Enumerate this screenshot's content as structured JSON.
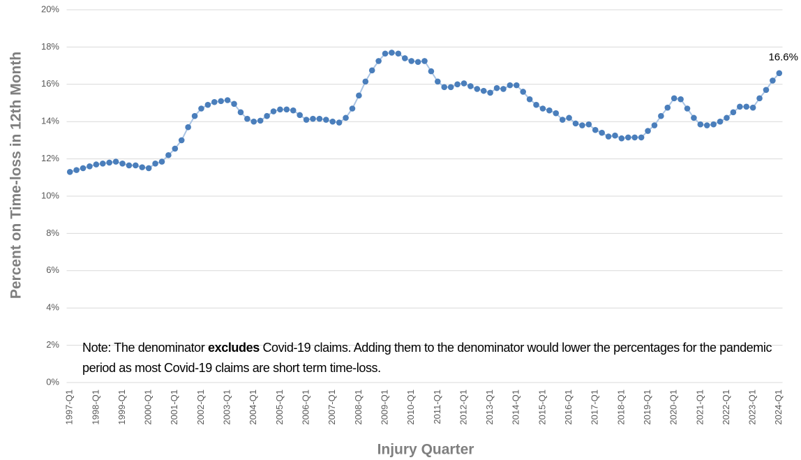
{
  "chart_data": {
    "type": "line",
    "x_label": "Injury Quarter",
    "y_label": "Percent on Time-loss in 12th Month",
    "annotation": [
      "Note: The denominator ",
      "excludes",
      " Covid-19 claims. Adding them to the denominator would lower the percentages for the pandemic period as most Covid-19 claims are short term time-loss."
    ],
    "categories": [
      "1997-Q1",
      null,
      null,
      null,
      "1998-Q1",
      null,
      null,
      null,
      "1999-Q1",
      null,
      null,
      null,
      "2000-Q1",
      null,
      null,
      null,
      "2001-Q1",
      null,
      null,
      null,
      "2002-Q1",
      null,
      null,
      null,
      "2003-Q1",
      null,
      null,
      null,
      "2004-Q1",
      null,
      null,
      null,
      "2005-Q1",
      null,
      null,
      null,
      "2006-Q1",
      null,
      null,
      null,
      "2007-Q1",
      null,
      null,
      null,
      "2008-Q1",
      null,
      null,
      null,
      "2009-Q1",
      null,
      null,
      null,
      "2010-Q1",
      null,
      null,
      null,
      "2011-Q1",
      null,
      null,
      null,
      "2012-Q1",
      null,
      null,
      null,
      "2013-Q1",
      null,
      null,
      null,
      "2014-Q1",
      null,
      null,
      null,
      "2015-Q1",
      null,
      null,
      null,
      "2016-Q1",
      null,
      null,
      null,
      "2017-Q1",
      null,
      null,
      null,
      "2018-Q1",
      null,
      null,
      null,
      "2019-Q1",
      null,
      null,
      null,
      "2020-Q1",
      null,
      null,
      null,
      "2021-Q1",
      null,
      null,
      null,
      "2022-Q1",
      null,
      null,
      null,
      "2023-Q1",
      null,
      null,
      null,
      "2024-Q1"
    ],
    "series": [
      {
        "color": "#4a7ebb",
        "line_color": "#a9c4e4",
        "values": [
          11.3,
          11.4,
          11.5,
          11.6,
          11.7,
          11.75,
          11.8,
          11.85,
          11.75,
          11.65,
          11.65,
          11.55,
          11.5,
          11.75,
          11.85,
          12.2,
          12.55,
          13.0,
          13.7,
          14.3,
          14.7,
          14.9,
          15.05,
          15.1,
          15.15,
          14.95,
          14.5,
          14.15,
          14.0,
          14.05,
          14.3,
          14.55,
          14.65,
          14.65,
          14.6,
          14.35,
          14.1,
          14.15,
          14.15,
          14.1,
          14.0,
          13.95,
          14.2,
          14.7,
          15.4,
          16.15,
          16.75,
          17.25,
          17.65,
          17.7,
          17.65,
          17.4,
          17.25,
          17.2,
          17.25,
          16.7,
          16.15,
          15.85,
          15.85,
          16.0,
          16.05,
          15.9,
          15.75,
          15.65,
          15.55,
          15.8,
          15.75,
          15.95,
          15.95,
          15.6,
          15.2,
          14.9,
          14.7,
          14.6,
          14.45,
          14.1,
          14.2,
          13.9,
          13.8,
          13.85,
          13.55,
          13.4,
          13.2,
          13.25,
          13.1,
          13.15,
          13.15,
          13.15,
          13.5,
          13.8,
          14.3,
          14.75,
          15.25,
          15.2,
          14.7,
          14.2,
          13.85,
          13.8,
          13.85,
          14.0,
          14.2,
          14.5,
          14.8,
          14.8,
          14.75,
          15.25,
          15.7,
          16.2,
          16.6
        ],
        "value_labels": [
          null,
          null,
          null,
          null,
          null,
          null,
          null,
          null,
          null,
          null,
          null,
          null,
          null,
          null,
          null,
          null,
          null,
          null,
          null,
          null,
          null,
          null,
          null,
          null,
          null,
          null,
          null,
          null,
          null,
          null,
          null,
          null,
          null,
          null,
          null,
          null,
          null,
          null,
          null,
          null,
          null,
          null,
          null,
          null,
          null,
          null,
          null,
          null,
          null,
          null,
          null,
          null,
          null,
          null,
          null,
          null,
          null,
          null,
          null,
          null,
          null,
          null,
          null,
          null,
          null,
          null,
          null,
          null,
          null,
          null,
          null,
          null,
          null,
          null,
          null,
          null,
          null,
          null,
          null,
          null,
          null,
          null,
          null,
          null,
          null,
          null,
          null,
          null,
          null,
          null,
          null,
          null,
          null,
          null,
          null,
          null,
          null,
          null,
          null,
          null,
          null,
          null,
          null,
          null,
          null,
          null,
          null,
          null,
          "16.6%"
        ]
      }
    ],
    "ylim": [
      0,
      20
    ],
    "yticks": [
      {
        "value": 0,
        "label": "0%"
      },
      {
        "value": 2,
        "label": "2%"
      },
      {
        "value": 4,
        "label": "4%"
      },
      {
        "value": 6,
        "label": "6%"
      },
      {
        "value": 8,
        "label": "8%"
      },
      {
        "value": 10,
        "label": "10%"
      },
      {
        "value": 12,
        "label": "12%"
      },
      {
        "value": 14,
        "label": "14%"
      },
      {
        "value": 16,
        "label": "16%"
      },
      {
        "value": 18,
        "label": "18%"
      },
      {
        "value": 20,
        "label": "20%"
      }
    ],
    "grid": true
  }
}
